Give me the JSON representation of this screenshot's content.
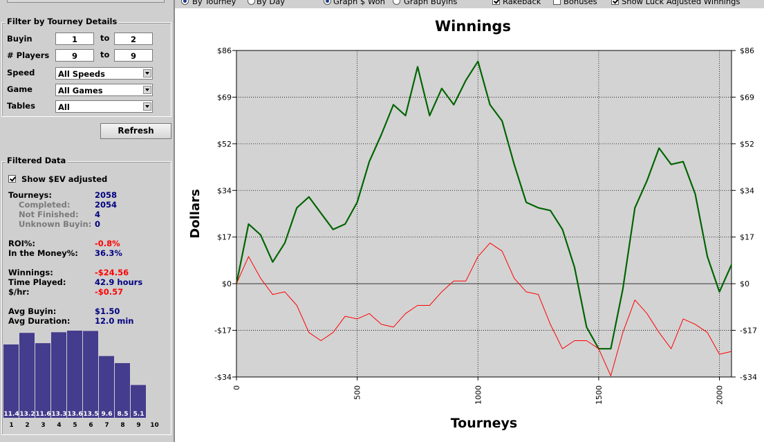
{
  "top_bar": {
    "options": [
      {
        "label": "By Tourney",
        "kind": "radio",
        "checked": true
      },
      {
        "label": "By Day",
        "kind": "radio",
        "checked": false
      },
      {
        "label": "Graph $ Won",
        "kind": "radio",
        "checked": true
      },
      {
        "label": "Graph Buyins",
        "kind": "radio",
        "checked": false
      },
      {
        "label": "Rakeback",
        "kind": "checkbox",
        "checked": true
      },
      {
        "label": "Bonuses",
        "kind": "checkbox",
        "checked": false
      },
      {
        "label": "Show Luck Adjusted Winnings",
        "kind": "checkbox",
        "checked": true
      }
    ]
  },
  "filter": {
    "title": "Filter by Tourney Details",
    "ranges": [
      {
        "label": "Buyin",
        "from": "1",
        "sep": "to",
        "to": "2"
      },
      {
        "label": "# Players",
        "from": "9",
        "sep": "to",
        "to": "9"
      }
    ],
    "selects": [
      {
        "label": "Speed",
        "value": "All Speeds"
      },
      {
        "label": "Game",
        "value": "All Games"
      },
      {
        "label": "Tables",
        "value": "All"
      }
    ],
    "button": "Refresh"
  },
  "filtered": {
    "title": "Filtered Data",
    "checkbox": {
      "label": "Show $EV adjusted",
      "checked": true
    },
    "groups": [
      [
        {
          "label": "Tourneys:",
          "value": "2058",
          "color": "#000080"
        },
        {
          "label": "Completed:",
          "value": "2054",
          "color": "#000080",
          "indent": true
        },
        {
          "label": "Not Finished:",
          "value": "4",
          "color": "#000080",
          "indent": true
        },
        {
          "label": "Unknown Buyin:",
          "value": "0",
          "color": "#000080",
          "indent": true
        }
      ],
      [
        {
          "label": "ROI%:",
          "value": "-0.8%",
          "color": "#ff0000"
        },
        {
          "label": "In the Money%:",
          "value": "36.3%",
          "color": "#000080"
        }
      ],
      [
        {
          "label": "Winnings:",
          "value": "-$24.56",
          "color": "#ff0000"
        },
        {
          "label": "Time Played:",
          "value": "42.9 hours",
          "color": "#000080"
        },
        {
          "label": "$/hr:",
          "value": "-$0.57",
          "color": "#ff0000"
        }
      ],
      [
        {
          "label": "Avg Buyin:",
          "value": "$1.50",
          "color": "#000080"
        },
        {
          "label": "Avg Duration:",
          "value": "12.0 min",
          "color": "#000080"
        }
      ]
    ]
  },
  "chart_data": [
    {
      "type": "line",
      "title": "Winnings",
      "xlabel": "Tourneys",
      "ylabel": "Dollars",
      "x": [
        0,
        50,
        100,
        150,
        200,
        250,
        300,
        350,
        400,
        450,
        500,
        550,
        600,
        650,
        700,
        750,
        800,
        850,
        900,
        950,
        1000,
        1050,
        1100,
        1150,
        1200,
        1250,
        1300,
        1350,
        1400,
        1450,
        1500,
        1550,
        1600,
        1650,
        1700,
        1750,
        1800,
        1850,
        1900,
        1950,
        2000,
        2050
      ],
      "series": [
        {
          "color": "#006400",
          "values": [
            0,
            22,
            18,
            8,
            15,
            28,
            32,
            26,
            20,
            22,
            30,
            45,
            55,
            66,
            62,
            80,
            62,
            72,
            66,
            75,
            82,
            66,
            60,
            44,
            30,
            28,
            27,
            20,
            6,
            -16,
            -24,
            -24,
            -2,
            28,
            38,
            50,
            44,
            45,
            33,
            10,
            -3,
            7
          ]
        },
        {
          "color": "#ff0000",
          "values": [
            0,
            10,
            2,
            -4,
            -3,
            -8,
            -18,
            -21,
            -18,
            -12,
            -13,
            -11,
            -15,
            -16,
            -11,
            -8,
            -8,
            -3,
            1,
            1,
            10,
            15,
            12,
            2,
            -3,
            -4,
            -15,
            -24,
            -21,
            -21,
            -24,
            -34,
            -18,
            -6,
            -11,
            -18,
            -24,
            -13,
            -15,
            -18,
            -26,
            -25
          ]
        }
      ],
      "xlim": [
        0,
        2050
      ],
      "ylim": [
        -34.4,
        86
      ],
      "xticks": [
        0,
        500,
        1000,
        1500,
        2000
      ],
      "yticks": [
        {
          "value": -34.4,
          "label": "-$34"
        },
        {
          "value": -17.2,
          "label": "-$17"
        },
        {
          "value": 0,
          "label": "$0"
        },
        {
          "value": 17.2,
          "label": "$17"
        },
        {
          "value": 34.4,
          "label": "$34"
        },
        {
          "value": 51.6,
          "label": "$52"
        },
        {
          "value": 68.8,
          "label": "$69"
        },
        {
          "value": 86,
          "label": "$86"
        }
      ],
      "grid": true,
      "mirror_y_ticks": true
    },
    {
      "type": "bar",
      "categories": [
        "1",
        "2",
        "3",
        "4",
        "5",
        "6",
        "7",
        "8",
        "9",
        "10"
      ],
      "values": [
        11.4,
        13.2,
        11.6,
        13.3,
        13.6,
        13.5,
        9.6,
        8.5,
        5.1,
        null
      ],
      "color": "#443c8c"
    }
  ]
}
